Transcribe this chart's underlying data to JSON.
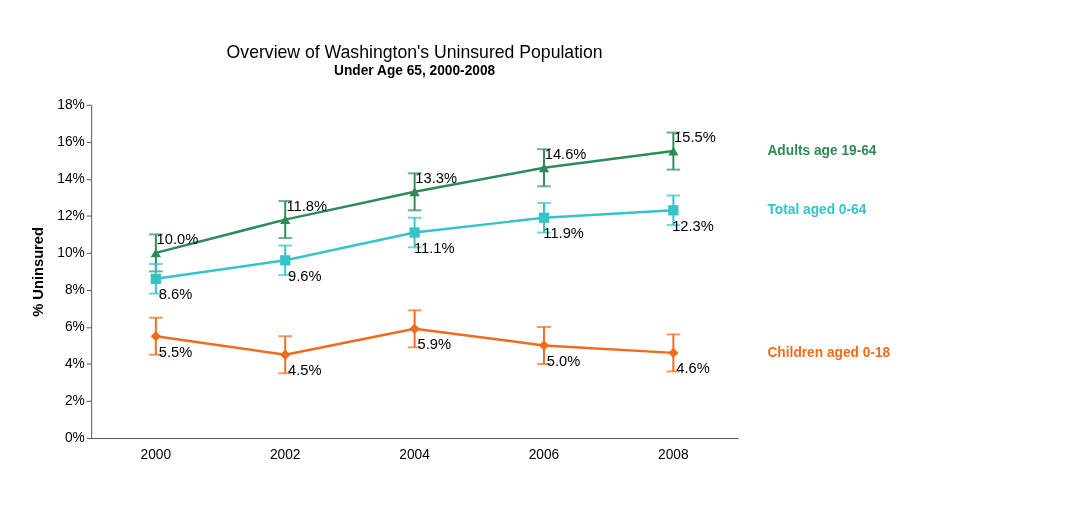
{
  "chart_data": {
    "type": "line",
    "title": "Overview of Washington's Uninsured Population",
    "subtitle": "Under Age 65, 2000-2008",
    "ylabel": "% Uninsured",
    "categories": [
      "2000",
      "2002",
      "2004",
      "2006",
      "2008"
    ],
    "series": [
      {
        "name": "Adults age 19-64",
        "color": "#2e8b57",
        "marker": "triangle",
        "values": [
          10.0,
          11.8,
          13.3,
          14.6,
          15.5
        ],
        "errors": [
          1.0,
          1.0,
          1.0,
          1.0,
          1.0
        ],
        "value_labels": [
          "10.0%",
          "11.8%",
          "13.3%",
          "14.6%",
          "15.5%"
        ]
      },
      {
        "name": "Total aged 0-64",
        "color": "#33c3c8",
        "marker": "square",
        "values": [
          8.6,
          9.6,
          11.1,
          11.9,
          12.3
        ],
        "errors": [
          0.8,
          0.8,
          0.8,
          0.8,
          0.8
        ],
        "value_labels": [
          "8.6%",
          "9.6%",
          "11.1%",
          "11.9%",
          "12.3%"
        ]
      },
      {
        "name": "Children aged 0-18",
        "color": "#f26b1d",
        "marker": "diamond",
        "values": [
          5.5,
          4.5,
          5.9,
          5.0,
          4.6
        ],
        "errors": [
          1.0,
          1.0,
          1.0,
          1.0,
          1.0
        ],
        "value_labels": [
          "5.5%",
          "4.5%",
          "5.9%",
          "5.0%",
          "4.6%"
        ]
      }
    ],
    "ylim": [
      0,
      18
    ],
    "yticks": [
      {
        "value": 0,
        "label": "0%"
      },
      {
        "value": 2,
        "label": "2%"
      },
      {
        "value": 4,
        "label": "4%"
      },
      {
        "value": 6,
        "label": "6%"
      },
      {
        "value": 8,
        "label": "8%"
      },
      {
        "value": 10,
        "label": "10%"
      },
      {
        "value": 12,
        "label": "12%"
      },
      {
        "value": 14,
        "label": "14%"
      },
      {
        "value": 16,
        "label": "16%"
      },
      {
        "value": 18,
        "label": "18%"
      }
    ],
    "grid": false,
    "legend": "right",
    "line_style": "solid"
  }
}
